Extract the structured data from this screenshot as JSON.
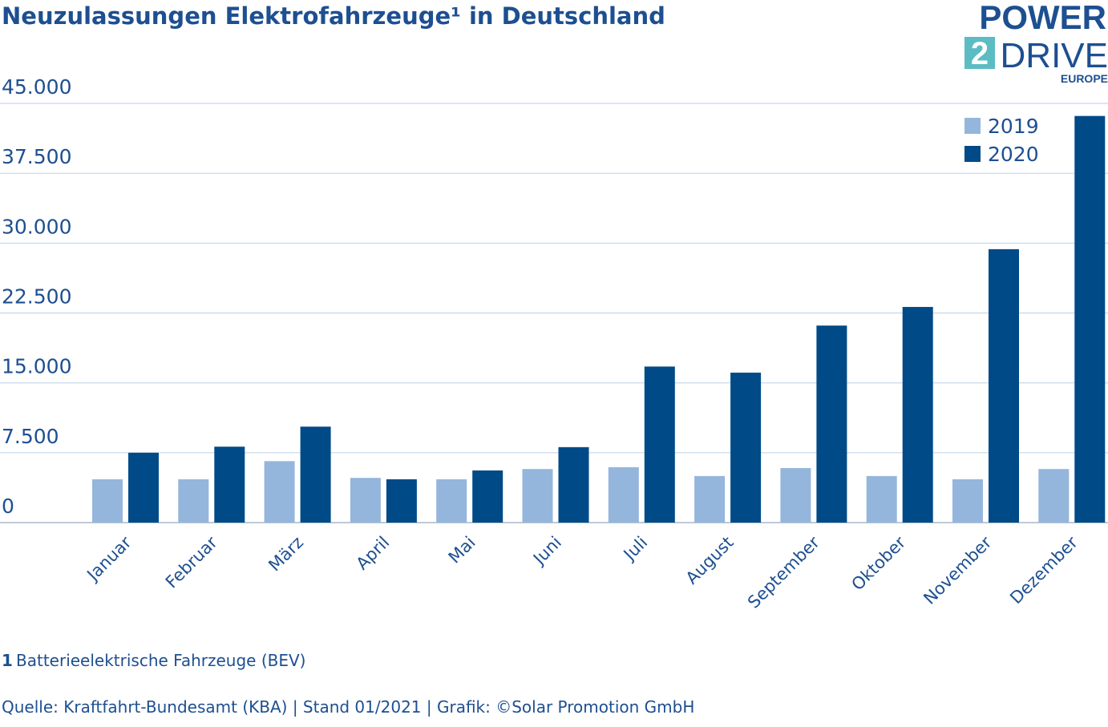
{
  "chart_data": {
    "type": "bar",
    "title": "Neuzulassungen Elektrofahrzeuge¹ in Deutschland",
    "categories": [
      "Januar",
      "Februar",
      "März",
      "April",
      "Mai",
      "Juni",
      "Juli",
      "August",
      "September",
      "Oktober",
      "November",
      "Dezember"
    ],
    "series": [
      {
        "name": "2019",
        "color": "#94b6dc",
        "values": [
          4650,
          4650,
          6600,
          4800,
          4650,
          5750,
          5950,
          5000,
          5850,
          5000,
          4650,
          5750
        ]
      },
      {
        "name": "2020",
        "color": "#004a87",
        "values": [
          7500,
          8150,
          10300,
          4650,
          5600,
          8100,
          16750,
          16100,
          21150,
          23150,
          29350,
          43650
        ]
      }
    ],
    "ylim": [
      0,
      45000
    ],
    "yticks": [
      0,
      {
        "value": 7500,
        "label": "7.500"
      },
      {
        "value": 15000,
        "label": "15.000"
      },
      {
        "value": 22500,
        "label": "22.500"
      },
      {
        "value": 30000,
        "label": "30.000"
      },
      {
        "value": 37500,
        "label": "37.500"
      },
      {
        "value": 45000,
        "label": "45.000"
      }
    ],
    "grid": true,
    "legend": "top-right"
  },
  "footnote": {
    "number": "1",
    "text": "Batterieelektrische Fahrzeuge (BEV)"
  },
  "source": "Quelle: Kraftfahrt-Bundesamt (KBA) | Stand 01/2021 | Grafik: ©Solar Promotion GmbH",
  "logo": {
    "line1": "POWER",
    "digit": "2",
    "line2": "DRIVE",
    "line3": "EUROPE"
  }
}
